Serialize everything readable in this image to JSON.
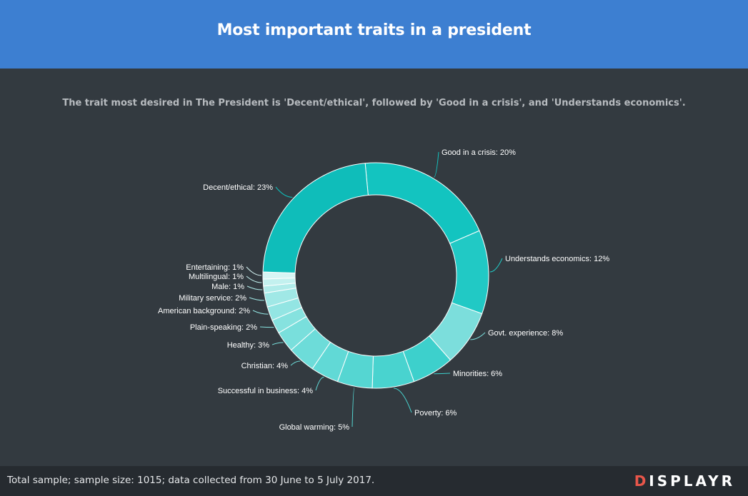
{
  "header": {
    "title": "Most important traits in a president"
  },
  "subtitle": "The trait most desired in The President is 'Decent/ethical', followed by 'Good in a crisis', and 'Understands economics'.",
  "footer": {
    "note": "Total sample; sample size: 1015; data collected from 30 June to 5 July 2017.",
    "brand_first": "D",
    "brand_rest": "ISPLAYR"
  },
  "chart_data": {
    "type": "pie",
    "donut": true,
    "series": [
      {
        "label": "Good in a crisis: 20%",
        "value": 20,
        "color": "#13c4c0"
      },
      {
        "label": "Understands economics: 12%",
        "value": 12,
        "color": "#21c9c5"
      },
      {
        "label": "Govt. experience: 8%",
        "value": 8,
        "color": "#7cdedc"
      },
      {
        "label": "Minorities: 6%",
        "value": 6,
        "color": "#3dd0cc"
      },
      {
        "label": "Poverty: 6%",
        "value": 6,
        "color": "#49d3cf"
      },
      {
        "label": "Global warming: 5%",
        "value": 5,
        "color": "#55d6d2"
      },
      {
        "label": "Successful in business: 4%",
        "value": 4,
        "color": "#61d9d6"
      },
      {
        "label": "Christian: 4%",
        "value": 4,
        "color": "#6ddcd9"
      },
      {
        "label": "Healthy: 3%",
        "value": 3,
        "color": "#79dfdc"
      },
      {
        "label": "Plain-speaking: 2%",
        "value": 2,
        "color": "#86e2df"
      },
      {
        "label": "American background: 2%",
        "value": 2,
        "color": "#93e5e3"
      },
      {
        "label": "Military service: 2%",
        "value": 2,
        "color": "#a0e8e6"
      },
      {
        "label": "Male: 1%",
        "value": 1,
        "color": "#b1ecea"
      },
      {
        "label": "Multilingual: 1%",
        "value": 1,
        "color": "#c3f1ef"
      },
      {
        "label": "Entertaining: 1%",
        "value": 1,
        "color": "#d6f5f4"
      },
      {
        "label": "Decent/ethical: 23%",
        "value": 23,
        "color": "#0fbdba"
      }
    ]
  }
}
